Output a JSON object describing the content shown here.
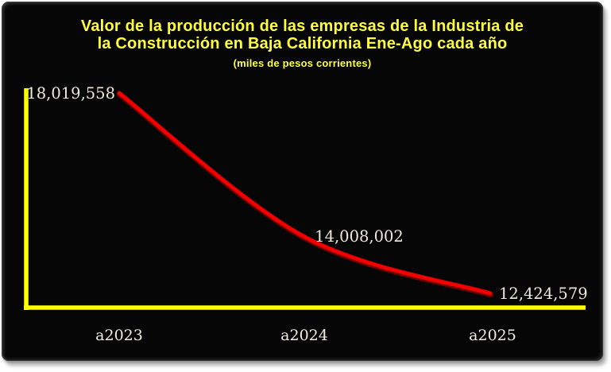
{
  "title": {
    "line1": "Valor de la producción de las empresas de la Industria de",
    "line2": "la Construcción en Baja California Ene-Ago cada año",
    "subtitle": "(miles de pesos corrientes)"
  },
  "colors": {
    "page_background": "#FFFFFF",
    "chart_background": "#060606",
    "title_text": "#FFFF3C",
    "axis": "#FFFF00",
    "line": "#F20000",
    "line_edge": "#8B0000",
    "data_label_text": "#EFE9DB",
    "category_label_text": "#F1EDE2"
  },
  "chart_data": {
    "type": "line",
    "title": "Valor de la producción de las empresas de la Industria de la Construcción en Baja California Ene-Ago cada año",
    "subtitle": "(miles de pesos corrientes)",
    "categories": [
      "a2023",
      "a2024",
      "a2025"
    ],
    "values": [
      18019558,
      14008002,
      12424579
    ],
    "data_labels": [
      "18,019,558",
      "14,008,002",
      "12,424,579"
    ],
    "legend": "none",
    "grid": false,
    "y_axis_ticks": "none",
    "smoothed_line": true,
    "line_color": "#FF0000",
    "axis_color": "#FFFF00",
    "plot_background": "#000000"
  }
}
